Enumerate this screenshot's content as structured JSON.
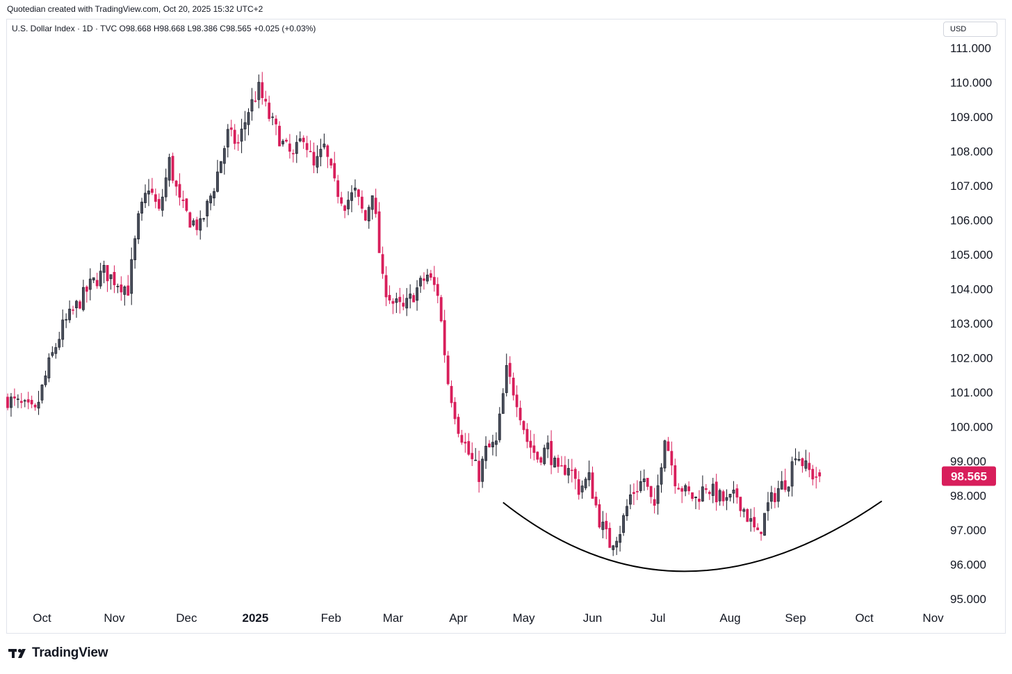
{
  "header": {
    "text": "Quotedian created with TradingView.com, Oct 20, 2025 15:32 UTC+2"
  },
  "legend": {
    "text": "U.S. Dollar Index · 1D · TVC  O98.668  H98.668  L98.386  C98.565  +0.025 (+0.03%)"
  },
  "currency_label": "USD",
  "footer": {
    "brand": "TradingView"
  },
  "colors": {
    "up": "#131722",
    "down": "#d81e5b",
    "price_tag": "#d81e5b",
    "axis_text": "#131722"
  },
  "chart_data": {
    "type": "candlestick",
    "title": "U.S. Dollar Index",
    "interval": "1D",
    "source": "TVC",
    "last": {
      "open": 98.668,
      "high": 98.668,
      "low": 98.386,
      "close": 98.565,
      "change": "+0.025",
      "change_pct": "(+0.03%)"
    },
    "price_tag": "98.565",
    "ylim": [
      94.4,
      111.8
    ],
    "y_ticks": [
      "111.000",
      "110.000",
      "109.000",
      "108.000",
      "107.000",
      "106.000",
      "105.000",
      "104.000",
      "103.000",
      "102.000",
      "101.000",
      "100.000",
      "99.000",
      "98.000",
      "97.000",
      "96.000",
      "95.000"
    ],
    "x_ticks": [
      {
        "label": "Oct",
        "idx": 10,
        "bold": false
      },
      {
        "label": "Nov",
        "idx": 31,
        "bold": false
      },
      {
        "label": "Dec",
        "idx": 52,
        "bold": false
      },
      {
        "label": "2025",
        "idx": 72,
        "bold": true
      },
      {
        "label": "Feb",
        "idx": 94,
        "bold": false
      },
      {
        "label": "Mar",
        "idx": 112,
        "bold": false
      },
      {
        "label": "Apr",
        "idx": 131,
        "bold": false
      },
      {
        "label": "May",
        "idx": 150,
        "bold": false
      },
      {
        "label": "Jun",
        "idx": 170,
        "bold": false
      },
      {
        "label": "Jul",
        "idx": 189,
        "bold": false
      },
      {
        "label": "Aug",
        "idx": 210,
        "bold": false
      },
      {
        "label": "Sep",
        "idx": 229,
        "bold": false
      },
      {
        "label": "Oct",
        "idx": 249,
        "bold": false
      },
      {
        "label": "Nov",
        "idx": 269,
        "bold": false
      }
    ],
    "n_bars": 260,
    "close_path": [
      [
        0,
        100.8
      ],
      [
        4,
        100.6
      ],
      [
        8,
        100.4
      ],
      [
        12,
        101.8
      ],
      [
        16,
        102.9
      ],
      [
        20,
        103.5
      ],
      [
        24,
        104.1
      ],
      [
        28,
        104.5
      ],
      [
        32,
        104.2
      ],
      [
        35,
        104.0
      ],
      [
        38,
        106.0
      ],
      [
        41,
        107.0
      ],
      [
        44,
        106.2
      ],
      [
        47,
        107.7
      ],
      [
        50,
        106.5
      ],
      [
        53,
        106.0
      ],
      [
        56,
        105.8
      ],
      [
        60,
        107.0
      ],
      [
        64,
        108.5
      ],
      [
        67,
        108.2
      ],
      [
        70,
        109.2
      ],
      [
        73,
        109.8
      ],
      [
        76,
        109.0
      ],
      [
        80,
        108.2
      ],
      [
        83,
        107.8
      ],
      [
        86,
        108.5
      ],
      [
        89,
        107.5
      ],
      [
        92,
        108.1
      ],
      [
        95,
        107.0
      ],
      [
        98,
        106.5
      ],
      [
        101,
        106.8
      ],
      [
        104,
        106.0
      ],
      [
        106,
        106.9
      ],
      [
        109,
        104.2
      ],
      [
        112,
        103.6
      ],
      [
        115,
        103.4
      ],
      [
        119,
        104.0
      ],
      [
        122,
        104.4
      ],
      [
        125,
        103.9
      ],
      [
        128,
        101.3
      ],
      [
        131,
        100.0
      ],
      [
        134,
        99.2
      ],
      [
        137,
        98.6
      ],
      [
        139,
        99.3
      ],
      [
        142,
        99.5
      ],
      [
        145,
        101.6
      ],
      [
        148,
        100.8
      ],
      [
        151,
        99.6
      ],
      [
        154,
        99.1
      ],
      [
        157,
        99.4
      ],
      [
        160,
        98.6
      ],
      [
        163,
        98.9
      ],
      [
        166,
        98.2
      ],
      [
        169,
        98.5
      ],
      [
        172,
        97.3
      ],
      [
        175,
        96.6
      ],
      [
        178,
        97.0
      ],
      [
        181,
        98.0
      ],
      [
        185,
        98.5
      ],
      [
        188,
        97.5
      ],
      [
        191,
        99.8
      ],
      [
        194,
        98.5
      ],
      [
        197,
        98.1
      ],
      [
        200,
        97.9
      ],
      [
        203,
        98.3
      ],
      [
        206,
        98.0
      ],
      [
        209,
        97.8
      ],
      [
        212,
        98.0
      ],
      [
        215,
        97.4
      ],
      [
        218,
        96.8
      ],
      [
        221,
        97.7
      ],
      [
        224,
        98.2
      ],
      [
        227,
        98.5
      ],
      [
        229,
        99.3
      ],
      [
        232,
        98.8
      ],
      [
        234,
        98.6
      ],
      [
        236,
        98.565
      ]
    ],
    "smile_curve": {
      "center_idx": 195,
      "bottom": 95.8,
      "left_idx": 144,
      "left_price": 97.8,
      "right_idx": 246,
      "right_price": 97.8
    }
  }
}
